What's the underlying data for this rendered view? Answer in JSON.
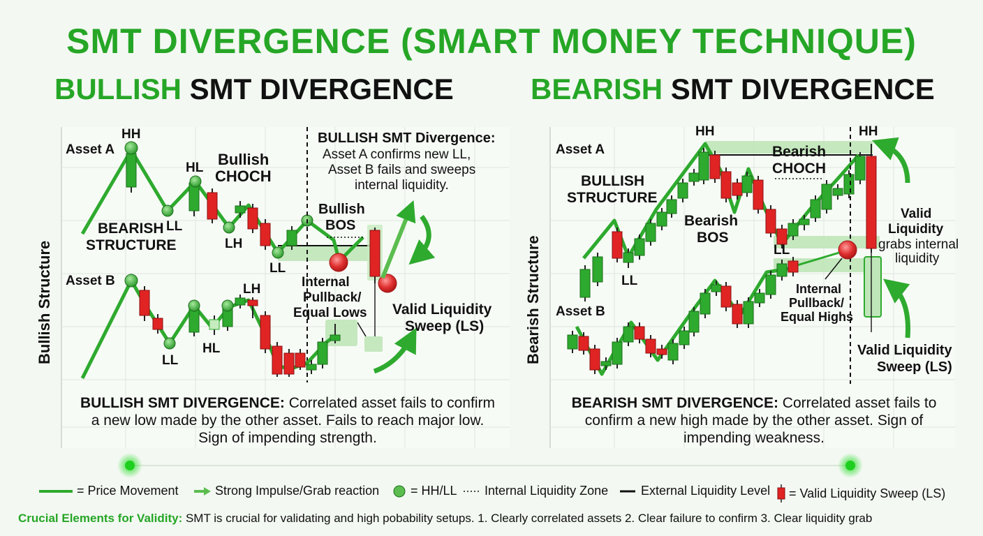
{
  "title": "SMT DIVERGENCE (SMART MONEY TECHNIQUE)",
  "bullish": {
    "title_accent": "BULLISH",
    "title_rest": " SMT DIVERGENCE",
    "side_label": "Bullish Structure",
    "asset_a": "Asset A",
    "asset_b": "Asset B",
    "hh": "HH",
    "hl_a": "HL",
    "choch_1": "Bullish",
    "choch_2": "CHOCH",
    "structure_1": "BEARISH",
    "structure_2": "STRUCTURE",
    "ll_a1": "LL",
    "lh_a": "LH",
    "ll_a2": "LL",
    "bos_1": "Bullish",
    "bos_2": "BOS",
    "note_head": "BULLISH SMT Divergence:",
    "note_line1": "Asset A confirms new LL,",
    "note_line2": "Asset B fails and sweeps",
    "note_line3": "internal liquidity.",
    "pullback_1": "Internal",
    "pullback_2": "Pullback/",
    "pullback_3": "Equal Lows",
    "sweep_1": "Valid Liquidity",
    "sweep_2": "Sweep (LS)",
    "ll_b": "LL",
    "hl_b": "HL",
    "lh_b": "LH",
    "desc_head": "BULLISH SMT DIVERGENCE:",
    "desc_body": " Correlated asset fails to confirm a new low made by the other asset. Fails to reach major low. Sign of impending strength."
  },
  "bearish": {
    "title_accent": "BEARISH",
    "title_rest": " SMT DIVERGENCE",
    "side_label": "Bearish Structure",
    "asset_a": "Asset A",
    "asset_b": "Asset B",
    "hh_1": "HH",
    "hh_2": "HH",
    "choch_1": "Bearish",
    "choch_2": "CHOCH",
    "structure_1": "BULLISH",
    "structure_2": "STRUCTURE",
    "bos_1": "Bearish",
    "bos_2": "BOS",
    "ll_a": "LL",
    "ll_b": "LL",
    "valid_1": "Valid",
    "valid_2": "Liquidity",
    "valid_3": "grabs internal",
    "valid_4": "liquidity",
    "pullback_1": "Internal",
    "pullback_2": "Pullback/",
    "pullback_3": "Equal Highs",
    "sweep_1": "Valid Liquidity",
    "sweep_2": "Sweep (LS)",
    "desc_head": "BEARISH SMT DIVERGENCE:",
    "desc_body": " Correlated asset fails to confirm a new high made by the other asset. Sign of impending weakness."
  },
  "legend": {
    "price": "= Price Movement",
    "impulse": "Strong Impulse/Grab reaction",
    "hhll": "= HH/LL",
    "internal": "Internal Liquidity Zone",
    "external": "External Liquidity Level",
    "sweep": "= Valid Liquidity Sweep (LS)"
  },
  "footer": {
    "head": "Crucial Elements for Validity:",
    "body": " SMT is crucial for validating and high pobability setups. 1. Clearly correlated assets  2. Clear failure to confirm  3. Clear liquidity grab"
  },
  "colors": {
    "green": "#2eaa2e",
    "red": "#e02424",
    "zone": "#bfe6b9",
    "accent": "#26a626"
  }
}
